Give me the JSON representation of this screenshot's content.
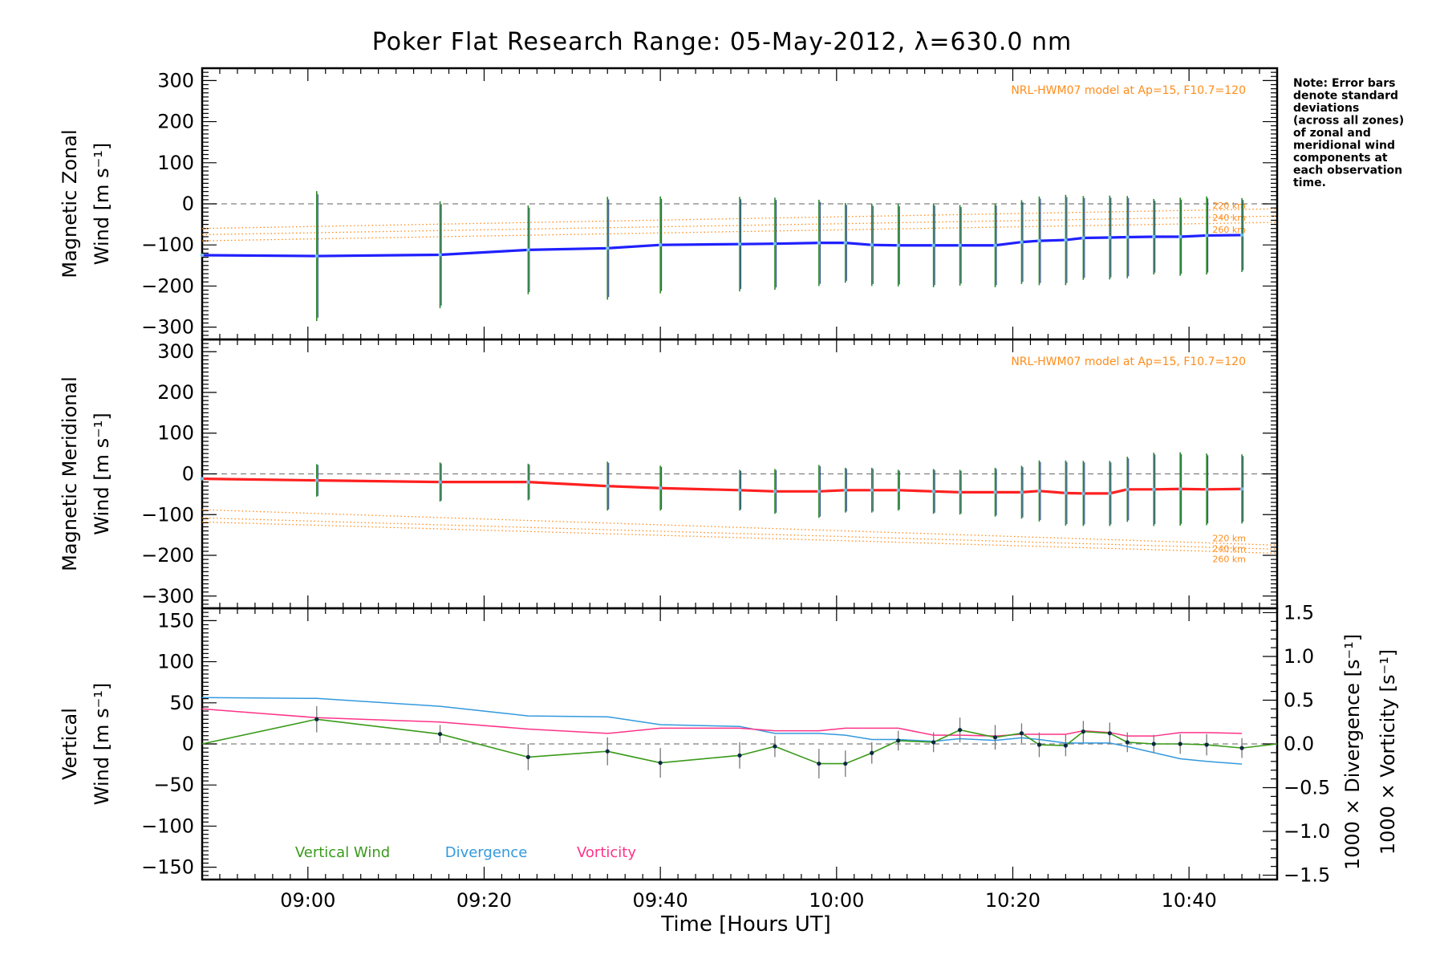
{
  "title": "Poker Flat Research Range: 05-May-2012, λ=630.0 nm",
  "note": [
    "Note: Error bars",
    "denote standard",
    "deviations",
    "(across all zones)",
    "of zonal and",
    "meridional wind",
    "components at",
    "each observation",
    "time."
  ],
  "model_label": "NRL-HWM07 model at Ap=15, F10.7=120",
  "altitudes": [
    "220 km",
    "240 km",
    "260 km"
  ],
  "xlabel": "Time [Hours UT]",
  "x_ticks": [
    "09:00",
    "09:20",
    "09:40",
    "10:00",
    "10:20",
    "10:40"
  ],
  "panel_zonal": {
    "ylabel_1": "Magnetic Zonal",
    "ylabel_2": "Wind [m s⁻¹]"
  },
  "panel_meridional": {
    "ylabel_1": "Magnetic Meridional",
    "ylabel_2": "Wind [m s⁻¹]"
  },
  "panel_vertical": {
    "ylabel_1": "Vertical",
    "ylabel_2": "Wind [m s⁻¹]",
    "right_label_div": "1000 × Divergence [s⁻¹]",
    "right_label_vort": "1000 × Vorticity [s⁻¹]",
    "legend": [
      "Vertical Wind",
      "Divergence",
      "Vorticity"
    ]
  },
  "colors": {
    "zonal": "#2020ff",
    "meridional": "#ff2020",
    "vertical": "#3a9a1a",
    "divergence": "#3399dd",
    "vorticity": "#ff3388",
    "model": "#ff8c1a",
    "errorbar_dark": "#1a3a80",
    "errorbar_green": "#2a8a2a"
  },
  "chart_data": [
    {
      "type": "line",
      "title": "Poker Flat Research Range: 05-May-2012, λ=630.0 nm",
      "xlabel": "Time [Hours UT]",
      "ylabel": "Magnetic Zonal Wind [m s⁻¹]",
      "xlim": [
        "08:48",
        "10:50"
      ],
      "ylim": [
        -330,
        330
      ],
      "y_ticks": [
        300,
        200,
        100,
        0,
        -100,
        -200,
        -300
      ],
      "series": [
        {
          "x": [
            "08:48",
            "09:01",
            "09:15",
            "09:25",
            "09:34",
            "09:40",
            "09:49",
            "09:53",
            "09:58",
            "10:01",
            "10:04",
            "10:07",
            "10:11",
            "10:14",
            "10:18",
            "10:21",
            "10:23",
            "10:26",
            "10:28",
            "10:31",
            "10:33",
            "10:36",
            "10:39",
            "10:42",
            "10:46"
          ],
          "y": [
            -125,
            -127,
            -124,
            -112,
            -108,
            -100,
            -98,
            -97,
            -95,
            -95,
            -100,
            -101,
            -101,
            -101,
            -101,
            -93,
            -90,
            -88,
            -83,
            -82,
            -81,
            -80,
            -80,
            -77,
            -76
          ],
          "err": [
            0,
            158,
            130,
            108,
            125,
            118,
            115,
            112,
            105,
            97,
            100,
            100,
            102,
            98,
            102,
            102,
            108,
            110,
            102,
            102,
            100,
            92,
            95,
            95,
            90
          ]
        }
      ],
      "model_curves": [
        {
          "name": "220 km",
          "y_start": -60,
          "y_end": -12
        },
        {
          "name": "240 km",
          "y_start": -75,
          "y_end": -30
        },
        {
          "name": "260 km",
          "y_start": -90,
          "y_end": -45
        }
      ]
    },
    {
      "type": "line",
      "xlabel": "Time [Hours UT]",
      "ylabel": "Magnetic Meridional Wind [m s⁻¹]",
      "xlim": [
        "08:48",
        "10:50"
      ],
      "ylim": [
        -330,
        330
      ],
      "y_ticks": [
        300,
        200,
        100,
        0,
        -100,
        -200,
        -300
      ],
      "series": [
        {
          "x": [
            "08:48",
            "09:01",
            "09:15",
            "09:25",
            "09:34",
            "09:40",
            "09:49",
            "09:53",
            "09:58",
            "10:01",
            "10:04",
            "10:07",
            "10:11",
            "10:14",
            "10:18",
            "10:21",
            "10:23",
            "10:26",
            "10:28",
            "10:31",
            "10:33",
            "10:36",
            "10:39",
            "10:42",
            "10:46"
          ],
          "y": [
            -12,
            -16,
            -20,
            -20,
            -30,
            -35,
            -40,
            -43,
            -43,
            -40,
            -40,
            -40,
            -43,
            -45,
            -45,
            -45,
            -42,
            -47,
            -48,
            -48,
            -38,
            -38,
            -37,
            -38,
            -37
          ],
          "err": [
            0,
            40,
            48,
            45,
            60,
            55,
            50,
            55,
            65,
            55,
            55,
            50,
            55,
            55,
            60,
            65,
            75,
            80,
            80,
            80,
            80,
            90,
            90,
            88,
            85
          ]
        }
      ],
      "model_curves": [
        {
          "name": "220 km",
          "y_start": -88,
          "y_end": -175
        },
        {
          "name": "240 km",
          "y_start": -108,
          "y_end": -185
        },
        {
          "name": "260 km",
          "y_start": -118,
          "y_end": -195
        }
      ]
    },
    {
      "type": "line",
      "xlabel": "Time [Hours UT]",
      "ylabel": "Vertical Wind [m s⁻¹]",
      "y2label": [
        "1000 × Divergence [s⁻¹]",
        "1000 × Vorticity [s⁻¹]"
      ],
      "xlim": [
        "08:48",
        "10:50"
      ],
      "ylim": [
        -165,
        165
      ],
      "y_ticks": [
        150,
        100,
        50,
        0,
        -50,
        -100,
        -150
      ],
      "y2lim": [
        -1.55,
        1.55
      ],
      "y2_ticks": [
        1.5,
        1.0,
        0.5,
        0.0,
        -0.5,
        -1.0,
        -1.5
      ],
      "legend_position": "bottom-left",
      "series": [
        {
          "name": "Vertical Wind",
          "axis": "left",
          "x": [
            "08:48",
            "09:01",
            "09:15",
            "09:25",
            "09:34",
            "09:40",
            "09:49",
            "09:53",
            "09:58",
            "10:01",
            "10:04",
            "10:07",
            "10:11",
            "10:14",
            "10:18",
            "10:21",
            "10:23",
            "10:26",
            "10:28",
            "10:31",
            "10:33",
            "10:36",
            "10:39",
            "10:42",
            "10:46",
            "10:50"
          ],
          "y": [
            0,
            30,
            12,
            -16,
            -9,
            -23,
            -14,
            -3,
            -24,
            -24,
            -11,
            4,
            2,
            17,
            8,
            13,
            -1,
            -2,
            15,
            13,
            2,
            0,
            0,
            -1,
            -5,
            0
          ],
          "err": [
            0,
            16,
            11,
            16,
            17,
            18,
            16,
            13,
            18,
            16,
            13,
            12,
            12,
            15,
            15,
            12,
            15,
            13,
            13,
            13,
            12,
            11,
            12,
            13,
            12,
            0
          ]
        },
        {
          "name": "Divergence",
          "axis": "right",
          "x": [
            "08:48",
            "09:01",
            "09:15",
            "09:25",
            "09:34",
            "09:40",
            "09:49",
            "09:53",
            "09:58",
            "10:01",
            "10:04",
            "10:07",
            "10:11",
            "10:14",
            "10:18",
            "10:21",
            "10:23",
            "10:26",
            "10:28",
            "10:31",
            "10:33",
            "10:36",
            "10:39",
            "10:42",
            "10:46"
          ],
          "y": [
            0.53,
            0.52,
            0.43,
            0.32,
            0.31,
            0.22,
            0.2,
            0.12,
            0.12,
            0.1,
            0.05,
            0.05,
            0.03,
            0.06,
            0.04,
            0.07,
            0.05,
            0.01,
            0.01,
            0.01,
            -0.03,
            -0.1,
            -0.17,
            -0.2,
            -0.23
          ]
        },
        {
          "name": "Vorticity",
          "axis": "right",
          "x": [
            "08:48",
            "09:01",
            "09:15",
            "09:25",
            "09:34",
            "09:40",
            "09:49",
            "09:53",
            "09:58",
            "10:01",
            "10:04",
            "10:07",
            "10:11",
            "10:14",
            "10:18",
            "10:21",
            "10:23",
            "10:26",
            "10:28",
            "10:31",
            "10:33",
            "10:36",
            "10:39",
            "10:42",
            "10:46"
          ],
          "y": [
            0.4,
            0.3,
            0.25,
            0.17,
            0.12,
            0.18,
            0.18,
            0.15,
            0.15,
            0.18,
            0.18,
            0.18,
            0.1,
            0.1,
            0.09,
            0.11,
            0.11,
            0.11,
            0.15,
            0.13,
            0.09,
            0.09,
            0.13,
            0.13,
            0.12
          ]
        }
      ]
    }
  ]
}
